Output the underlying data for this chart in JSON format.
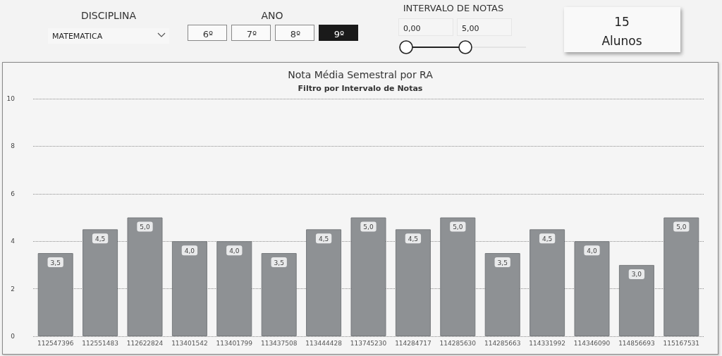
{
  "chart_data": {
    "type": "bar",
    "title": "Nota Média Semestral por RA",
    "subtitle": "Filtro por Intervalo de Notas",
    "annotations": [
      "DISCIPLINA",
      "MATEMATICA",
      "ANO",
      "6º",
      "7º",
      "8º",
      "9º",
      "INTERVALO DE NOTAS",
      "0,00",
      "5,00",
      "15",
      "Alunos"
    ],
    "categories": [
      "112547396",
      "112551483",
      "112622824",
      "113401542",
      "113401799",
      "113437508",
      "113444428",
      "113745230",
      "114284717",
      "114285630",
      "114285663",
      "114331992",
      "114346090",
      "114856693",
      "115167531"
    ],
    "values": [
      3.5,
      4.5,
      5.0,
      4.0,
      4.0,
      3.5,
      4.5,
      5.0,
      4.5,
      5.0,
      3.5,
      4.5,
      4.0,
      3.0,
      5.0
    ],
    "value_labels": [
      "3,5",
      "4,5",
      "5,0",
      "4,0",
      "4,0",
      "3,5",
      "4,5",
      "5,0",
      "4,5",
      "5,0",
      "3,5",
      "4,5",
      "4,0",
      "3,0",
      "5,0"
    ],
    "color": "#8e9194",
    "ylim": [
      0,
      10
    ],
    "yticks": [
      0,
      2,
      4,
      6,
      8,
      10
    ],
    "grid": "y"
  }
}
